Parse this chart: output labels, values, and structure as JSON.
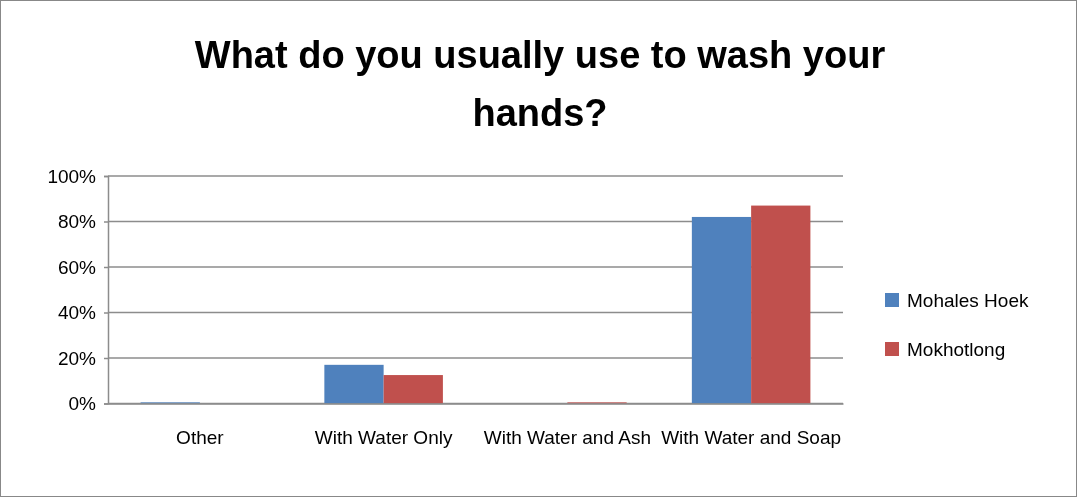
{
  "chart_data": {
    "type": "bar",
    "title": "What do you usually use to wash your hands?",
    "categories": [
      "Other",
      "With Water Only",
      "With Water and Ash",
      "With Water and Soap"
    ],
    "series": [
      {
        "name": "Mohales Hoek",
        "color": "#4f81bd",
        "values": [
          0.5,
          17,
          0,
          82
        ]
      },
      {
        "name": "Mokhotlong",
        "color": "#c0504d",
        "values": [
          0,
          12.5,
          0.5,
          87
        ]
      }
    ],
    "ylim": [
      0,
      100
    ],
    "yticks": [
      {
        "value": 0,
        "label": "0%"
      },
      {
        "value": 20,
        "label": "20%"
      },
      {
        "value": 40,
        "label": "40%"
      },
      {
        "value": 60,
        "label": "60%"
      },
      {
        "value": 80,
        "label": "80%"
      },
      {
        "value": 100,
        "label": "100%"
      }
    ],
    "grid": "y",
    "legend": "right"
  }
}
